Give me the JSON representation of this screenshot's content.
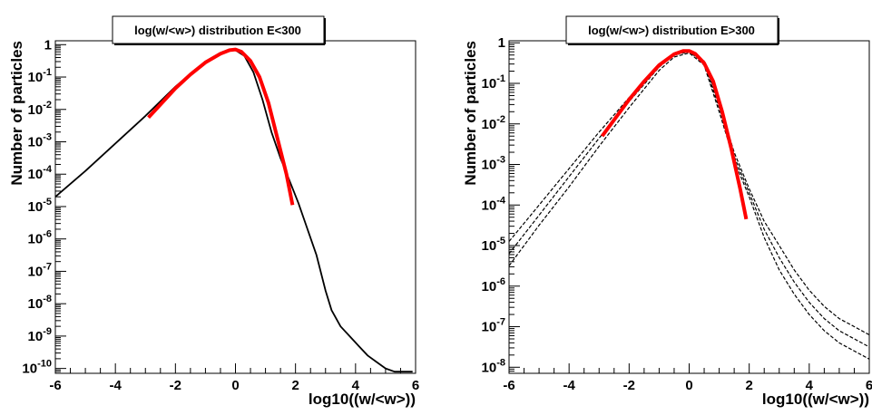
{
  "chart_data": [
    {
      "type": "line",
      "title": "log(w/<w>) distribution E<300",
      "xlabel": "log10((w/<w>))",
      "ylabel": "Number of particles",
      "xlim": [
        -6,
        6
      ],
      "ylim_log10": [
        -10.15,
        0.12
      ],
      "y_scale": "log",
      "x_ticks": [
        "-6",
        "-4",
        "-2",
        "0",
        "2",
        "4",
        "6"
      ],
      "y_ticks": [
        {
          "base": "10",
          "exp": "-10",
          "log": -10
        },
        {
          "base": "10",
          "exp": "-9",
          "log": -9
        },
        {
          "base": "10",
          "exp": "-8",
          "log": -8
        },
        {
          "base": "10",
          "exp": "-7",
          "log": -7
        },
        {
          "base": "10",
          "exp": "-6",
          "log": -6
        },
        {
          "base": "10",
          "exp": "-5",
          "log": -5
        },
        {
          "base": "10",
          "exp": "-4",
          "log": -4
        },
        {
          "base": "10",
          "exp": "-3",
          "log": -3
        },
        {
          "base": "10",
          "exp": "-2",
          "log": -2
        },
        {
          "base": "10",
          "exp": "-1",
          "log": -1
        },
        {
          "base": "1",
          "exp": "",
          "log": 0
        }
      ],
      "series": [
        {
          "style": "solid",
          "color": "#000000",
          "x": [
            -6.0,
            -5.0,
            -4.0,
            -3.0,
            -2.5,
            -2.0,
            -1.5,
            -1.0,
            -0.5,
            -0.2,
            0.0,
            0.3,
            0.6,
            0.9,
            1.2,
            1.5,
            1.8,
            2.1,
            2.4,
            2.7,
            3.0,
            3.2,
            3.5,
            3.8,
            4.1,
            4.4,
            4.7,
            5.0,
            5.3,
            5.6,
            5.9
          ],
          "log10_y": [
            -4.7,
            -3.9,
            -3.05,
            -2.2,
            -1.75,
            -1.3,
            -0.9,
            -0.52,
            -0.25,
            -0.15,
            -0.17,
            -0.35,
            -0.85,
            -1.7,
            -2.7,
            -3.5,
            -4.2,
            -4.9,
            -5.7,
            -6.5,
            -7.6,
            -8.2,
            -8.7,
            -9.0,
            -9.3,
            -9.6,
            -9.8,
            -10.0,
            -10.1,
            -10.1,
            -10.1
          ]
        },
        {
          "style": "fit",
          "color": "#ff0000",
          "x": [
            -2.9,
            -2.5,
            -2.0,
            -1.5,
            -1.0,
            -0.5,
            -0.2,
            0.0,
            0.2,
            0.5,
            0.8,
            1.1,
            1.4,
            1.7,
            1.9
          ],
          "log10_y": [
            -2.25,
            -1.85,
            -1.35,
            -0.92,
            -0.55,
            -0.28,
            -0.17,
            -0.15,
            -0.22,
            -0.5,
            -1.0,
            -1.8,
            -2.9,
            -4.0,
            -4.95
          ]
        }
      ]
    },
    {
      "type": "line",
      "title": "log(w/<w>) distribution E>300",
      "xlabel": "log10((w/<w>))",
      "ylabel": "Number of particles",
      "xlim": [
        -6,
        6
      ],
      "ylim_log10": [
        -8.15,
        0.05
      ],
      "y_scale": "log",
      "x_ticks": [
        "-6",
        "-4",
        "-2",
        "0",
        "2",
        "4",
        "6"
      ],
      "y_ticks": [
        {
          "base": "10",
          "exp": "-8",
          "log": -8
        },
        {
          "base": "10",
          "exp": "-7",
          "log": -7
        },
        {
          "base": "10",
          "exp": "-6",
          "log": -6
        },
        {
          "base": "10",
          "exp": "-5",
          "log": -5
        },
        {
          "base": "10",
          "exp": "-4",
          "log": -4
        },
        {
          "base": "10",
          "exp": "-3",
          "log": -3
        },
        {
          "base": "10",
          "exp": "-2",
          "log": -2
        },
        {
          "base": "10",
          "exp": "-1",
          "log": -1
        },
        {
          "base": "1",
          "exp": "",
          "log": 0
        }
      ],
      "series": [
        {
          "style": "dashed",
          "color": "#000000",
          "x": [
            -6.0,
            -5.0,
            -4.0,
            -3.0,
            -2.0,
            -1.0,
            -0.5,
            0.0,
            0.5,
            1.0,
            1.5,
            2.0,
            2.5,
            3.0,
            3.5,
            4.0,
            4.5,
            5.0,
            5.5,
            6.0
          ],
          "log10_y": [
            -4.9,
            -4.0,
            -3.1,
            -2.2,
            -1.35,
            -0.55,
            -0.28,
            -0.2,
            -0.45,
            -1.5,
            -2.7,
            -3.6,
            -4.4,
            -5.0,
            -5.6,
            -6.1,
            -6.5,
            -6.8,
            -7.0,
            -7.2
          ]
        },
        {
          "style": "dashed",
          "color": "#000000",
          "x": [
            -6.0,
            -5.0,
            -4.0,
            -3.0,
            -2.0,
            -1.0,
            -0.5,
            0.0,
            0.5,
            1.0,
            1.5,
            2.0,
            2.5,
            3.0,
            3.5,
            4.0,
            4.5,
            5.0,
            5.5,
            6.0
          ],
          "log10_y": [
            -5.2,
            -4.25,
            -3.3,
            -2.35,
            -1.45,
            -0.6,
            -0.3,
            -0.22,
            -0.5,
            -1.6,
            -2.8,
            -3.7,
            -4.6,
            -5.3,
            -5.9,
            -6.4,
            -6.8,
            -7.1,
            -7.3,
            -7.5
          ]
        },
        {
          "style": "dashed",
          "color": "#000000",
          "x": [
            -6.0,
            -5.0,
            -4.0,
            -3.0,
            -2.0,
            -1.0,
            -0.5,
            0.0,
            0.5,
            1.0,
            1.5,
            2.0,
            2.5,
            3.0,
            3.5,
            4.0,
            4.5,
            5.0,
            5.5,
            6.0
          ],
          "log10_y": [
            -5.5,
            -4.5,
            -3.55,
            -2.55,
            -1.6,
            -0.68,
            -0.35,
            -0.25,
            -0.55,
            -1.7,
            -2.9,
            -3.8,
            -4.8,
            -5.6,
            -6.2,
            -6.7,
            -7.1,
            -7.4,
            -7.6,
            -7.8
          ]
        },
        {
          "style": "fit",
          "color": "#ff0000",
          "x": [
            -2.9,
            -2.5,
            -2.0,
            -1.5,
            -1.0,
            -0.5,
            -0.2,
            0.0,
            0.2,
            0.5,
            0.8,
            1.1,
            1.4,
            1.7,
            1.9
          ],
          "log10_y": [
            -2.3,
            -1.9,
            -1.4,
            -0.95,
            -0.55,
            -0.28,
            -0.2,
            -0.2,
            -0.27,
            -0.5,
            -0.95,
            -1.7,
            -2.6,
            -3.6,
            -4.35
          ]
        }
      ]
    }
  ]
}
